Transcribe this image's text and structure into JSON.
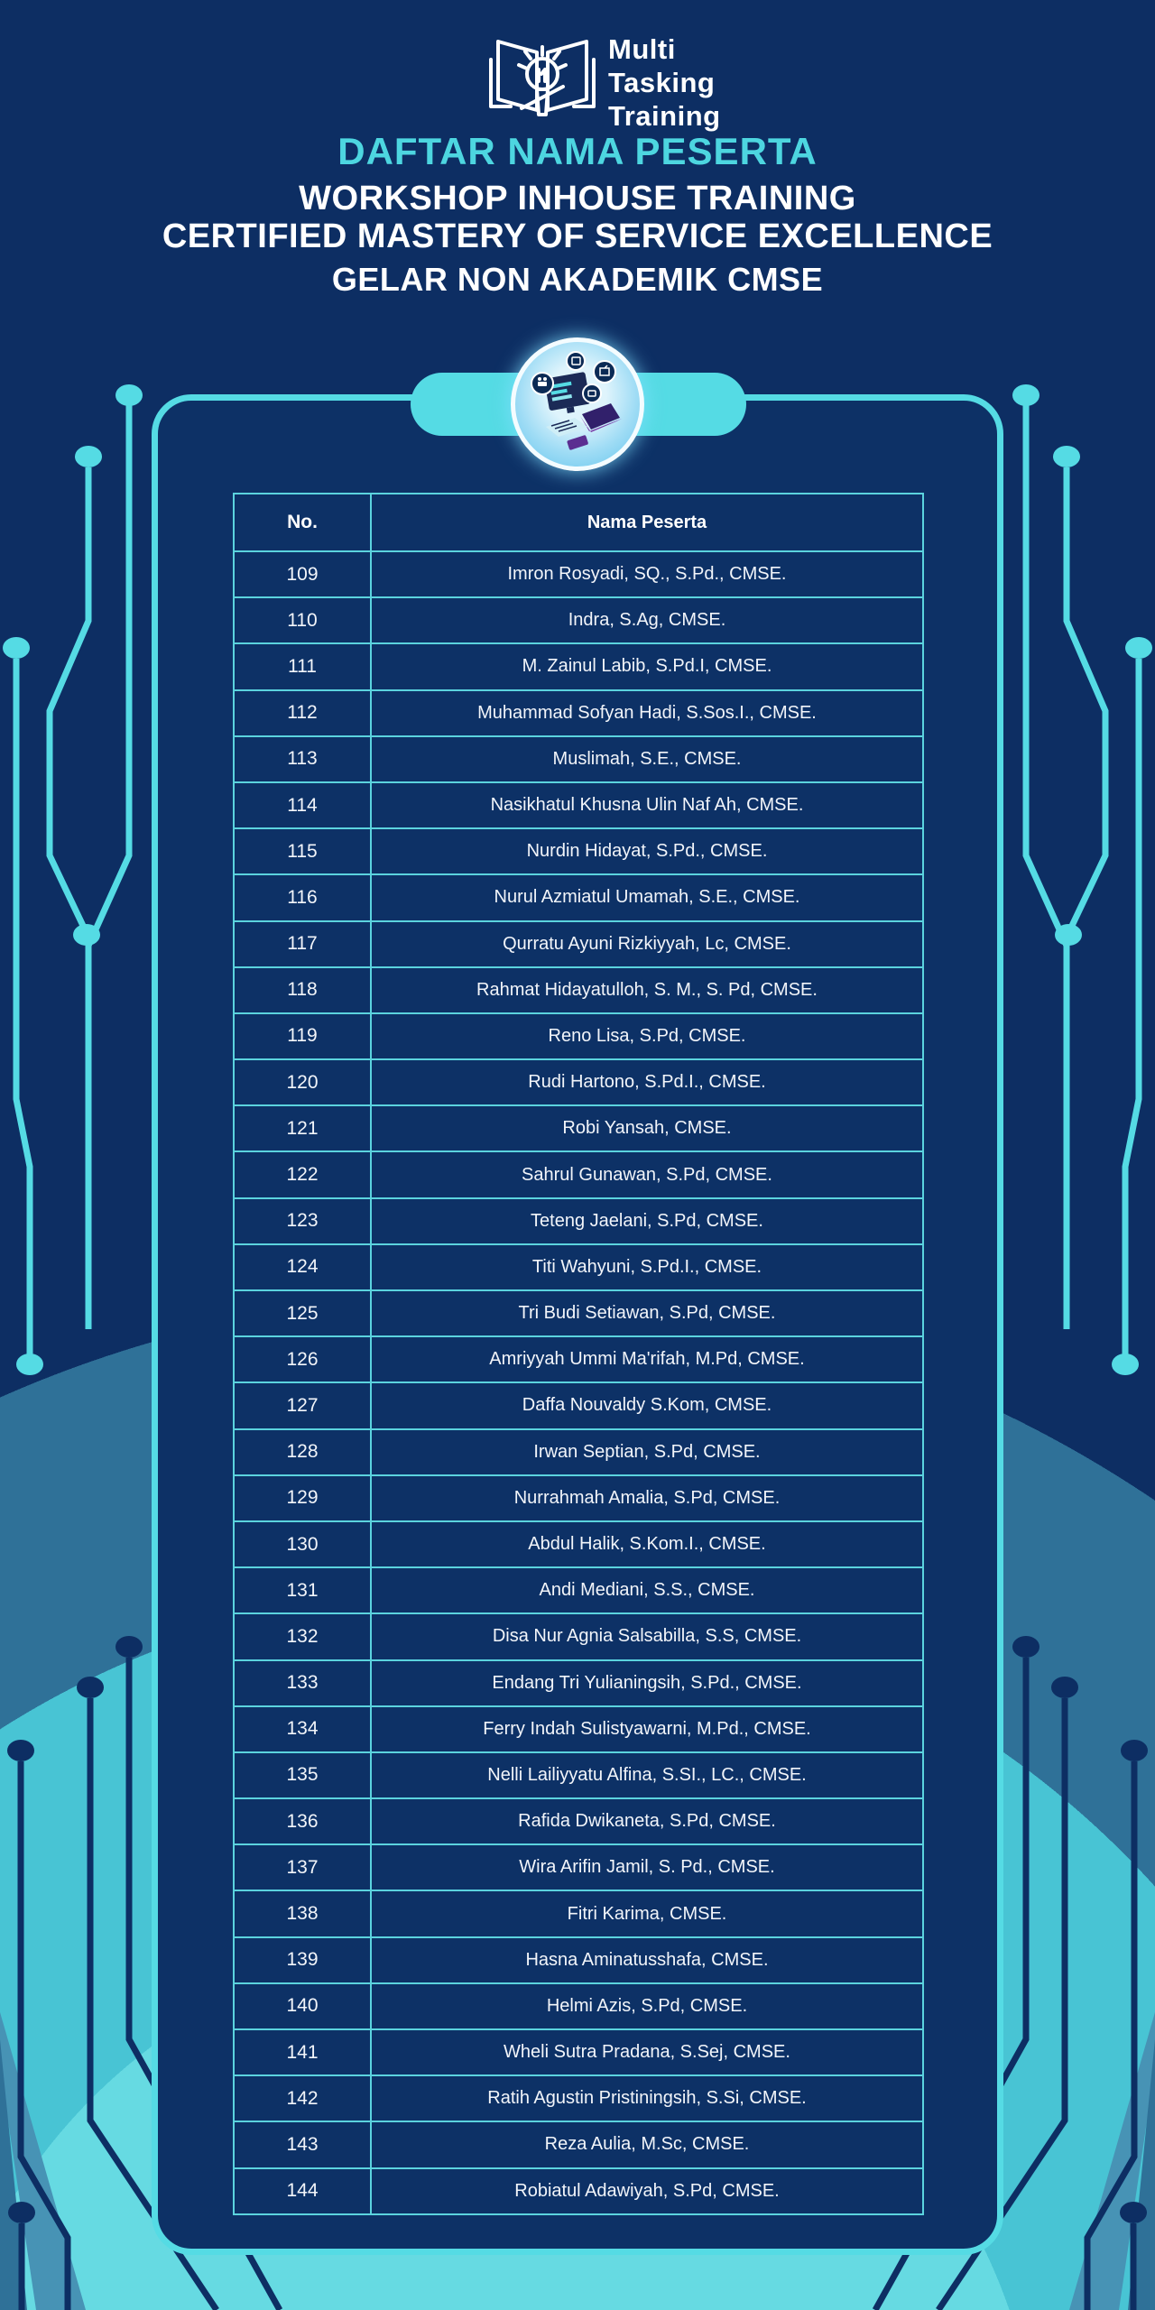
{
  "brand": {
    "logo_icon": "open-book-lightbulb-icon",
    "logo_lines": [
      "Multi",
      "Tasking",
      "Training"
    ]
  },
  "header": {
    "title": "DAFTAR NAMA PESERTA",
    "subtitle_line1": "WORKSHOP INHOUSE TRAINING",
    "subtitle_line2": "CERTIFIED MASTERY OF SERVICE EXCELLENCE",
    "subtitle_line3": "GELAR NON AKADEMIK CMSE"
  },
  "decor": {
    "badge_icon": "technology-devices-illustration",
    "side_icons": "circuit-lines-with-dots",
    "colors": {
      "navy": "#0d2e63",
      "panel_navy": "#0d3166",
      "cyan_accent": "#55dbe4",
      "title_cyan": "#4dd6e0",
      "grid_line": "#5bd3de",
      "turquoise": "#48c4d4",
      "light_turquoise": "#66dae2",
      "slate_band": "#2f7198",
      "white": "#ffffff"
    }
  },
  "table": {
    "columns": [
      "No.",
      "Nama Peserta"
    ],
    "rows": [
      {
        "no": "109",
        "name": "Imron Rosyadi, SQ., S.Pd., CMSE."
      },
      {
        "no": "110",
        "name": "Indra, S.Ag, CMSE."
      },
      {
        "no": "111",
        "name": "M. Zainul Labib, S.Pd.I, CMSE."
      },
      {
        "no": "112",
        "name": "Muhammad Sofyan Hadi, S.Sos.I., CMSE."
      },
      {
        "no": "113",
        "name": "Muslimah, S.E., CMSE."
      },
      {
        "no": "114",
        "name": "Nasikhatul Khusna Ulin Naf Ah, CMSE."
      },
      {
        "no": "115",
        "name": "Nurdin Hidayat, S.Pd., CMSE."
      },
      {
        "no": "116",
        "name": "Nurul Azmiatul Umamah, S.E., CMSE."
      },
      {
        "no": "117",
        "name": "Qurratu Ayuni Rizkiyyah, Lc, CMSE."
      },
      {
        "no": "118",
        "name": "Rahmat Hidayatulloh, S. M., S. Pd, CMSE."
      },
      {
        "no": "119",
        "name": "Reno Lisa, S.Pd, CMSE."
      },
      {
        "no": "120",
        "name": "Rudi Hartono, S.Pd.I., CMSE."
      },
      {
        "no": "121",
        "name": "Robi Yansah, CMSE."
      },
      {
        "no": "122",
        "name": "Sahrul Gunawan, S.Pd, CMSE."
      },
      {
        "no": "123",
        "name": "Teteng Jaelani, S.Pd, CMSE."
      },
      {
        "no": "124",
        "name": "Titi Wahyuni, S.Pd.I., CMSE."
      },
      {
        "no": "125",
        "name": "Tri Budi Setiawan, S.Pd, CMSE."
      },
      {
        "no": "126",
        "name": "Amriyyah Ummi Ma'rifah, M.Pd, CMSE."
      },
      {
        "no": "127",
        "name": "Daffa Nouvaldy S.Kom, CMSE."
      },
      {
        "no": "128",
        "name": "Irwan Septian, S.Pd, CMSE."
      },
      {
        "no": "129",
        "name": "Nurrahmah Amalia, S.Pd, CMSE."
      },
      {
        "no": "130",
        "name": "Abdul Halik, S.Kom.I., CMSE."
      },
      {
        "no": "131",
        "name": "Andi Mediani, S.S., CMSE."
      },
      {
        "no": "132",
        "name": "Disa Nur Agnia Salsabilla, S.S, CMSE."
      },
      {
        "no": "133",
        "name": "Endang Tri Yulianingsih, S.Pd., CMSE."
      },
      {
        "no": "134",
        "name": "Ferry Indah Sulistyawarni, M.Pd., CMSE."
      },
      {
        "no": "135",
        "name": "Nelli Lailiyyatu Alfina, S.SI., LC., CMSE."
      },
      {
        "no": "136",
        "name": "Rafida Dwikaneta, S.Pd, CMSE."
      },
      {
        "no": "137",
        "name": "Wira Arifin Jamil, S. Pd., CMSE."
      },
      {
        "no": "138",
        "name": "Fitri Karima, CMSE."
      },
      {
        "no": "139",
        "name": "Hasna Aminatusshafa, CMSE."
      },
      {
        "no": "140",
        "name": "Helmi Azis, S.Pd, CMSE."
      },
      {
        "no": "141",
        "name": "Wheli Sutra Pradana, S.Sej, CMSE."
      },
      {
        "no": "142",
        "name": "Ratih Agustin Pristiningsih, S.Si, CMSE."
      },
      {
        "no": "143",
        "name": "Reza Aulia, M.Sc, CMSE."
      },
      {
        "no": "144",
        "name": "Robiatul Adawiyah, S.Pd, CMSE."
      }
    ]
  }
}
